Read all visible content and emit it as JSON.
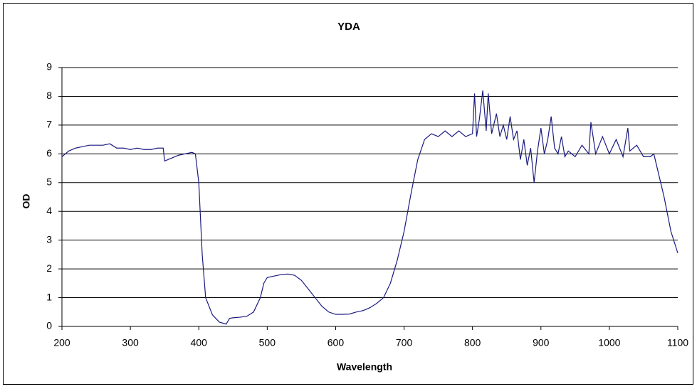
{
  "chart_data": {
    "type": "line",
    "title": "YDA",
    "x_label": "Wavelength",
    "y_label": "OD",
    "color": "#1a1a80",
    "grid": true,
    "xlim": [
      200,
      1100
    ],
    "xticks": [
      200,
      300,
      400,
      500,
      600,
      700,
      800,
      900,
      1000,
      1100
    ],
    "ylim": [
      0,
      9
    ],
    "yticks": [
      0,
      1,
      2,
      3,
      4,
      5,
      6,
      7,
      8,
      9
    ],
    "x": [
      200,
      210,
      220,
      230,
      240,
      250,
      260,
      270,
      280,
      290,
      300,
      310,
      320,
      330,
      340,
      348,
      350,
      360,
      370,
      380,
      390,
      395,
      400,
      405,
      410,
      420,
      430,
      440,
      445,
      450,
      460,
      470,
      480,
      490,
      495,
      500,
      510,
      520,
      530,
      540,
      550,
      560,
      570,
      580,
      590,
      600,
      610,
      620,
      630,
      640,
      650,
      660,
      670,
      680,
      690,
      700,
      710,
      720,
      730,
      740,
      750,
      760,
      770,
      780,
      790,
      800,
      803,
      806,
      810,
      815,
      820,
      823,
      828,
      835,
      840,
      845,
      850,
      855,
      860,
      865,
      870,
      875,
      880,
      885,
      890,
      895,
      900,
      905,
      910,
      915,
      920,
      925,
      930,
      935,
      940,
      950,
      960,
      970,
      973,
      980,
      990,
      1000,
      1010,
      1020,
      1027,
      1030,
      1040,
      1050,
      1060,
      1065,
      1070,
      1080,
      1090,
      1100
    ],
    "values": [
      5.9,
      6.1,
      6.2,
      6.25,
      6.3,
      6.3,
      6.3,
      6.35,
      6.2,
      6.2,
      6.15,
      6.2,
      6.15,
      6.15,
      6.2,
      6.2,
      5.75,
      5.85,
      5.95,
      6.0,
      6.05,
      6.0,
      5.0,
      2.5,
      1.0,
      0.4,
      0.15,
      0.08,
      0.28,
      0.3,
      0.32,
      0.35,
      0.5,
      1.0,
      1.5,
      1.7,
      1.75,
      1.8,
      1.82,
      1.78,
      1.6,
      1.3,
      1.0,
      0.7,
      0.5,
      0.42,
      0.42,
      0.43,
      0.5,
      0.55,
      0.65,
      0.8,
      1.0,
      1.5,
      2.3,
      3.3,
      4.6,
      5.8,
      6.5,
      6.7,
      6.6,
      6.8,
      6.6,
      6.8,
      6.6,
      6.7,
      8.1,
      6.6,
      7.2,
      8.2,
      6.8,
      8.1,
      6.7,
      7.4,
      6.6,
      7.0,
      6.5,
      7.3,
      6.5,
      6.8,
      5.8,
      6.5,
      5.6,
      6.2,
      5.0,
      6.1,
      6.9,
      6.0,
      6.5,
      7.3,
      6.2,
      6.0,
      6.6,
      5.9,
      6.1,
      5.9,
      6.3,
      6.0,
      7.1,
      6.0,
      6.6,
      6.0,
      6.5,
      5.9,
      6.9,
      6.1,
      6.3,
      5.9,
      5.9,
      6.0,
      5.5,
      4.5,
      3.3,
      2.55
    ]
  }
}
